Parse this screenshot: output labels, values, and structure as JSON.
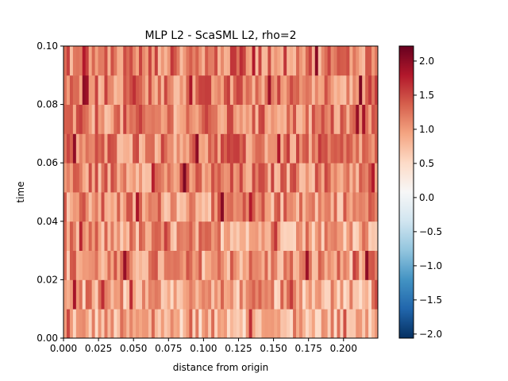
{
  "chart_data": {
    "type": "heatmap",
    "title": "MLP L2 - ScaSML L2, rho=2",
    "xlabel": "distance from origin",
    "ylabel": "time",
    "xlim": [
      0,
      0.2245
    ],
    "ylim": [
      0,
      0.1
    ],
    "x_ticks": [
      "0.000",
      "0.025",
      "0.050",
      "0.075",
      "0.100",
      "0.125",
      "0.150",
      "0.175",
      "0.200"
    ],
    "y_ticks": [
      "0.00",
      "0.02",
      "0.04",
      "0.06",
      "0.08",
      "0.10"
    ],
    "n_time_bins": 10,
    "n_distance_bins": 100,
    "time_bin_width": 0.01,
    "row_levels": [
      0.85,
      0.92,
      1.02,
      0.98,
      1.05,
      1.12,
      1.15,
      1.12,
      1.15,
      1.18
    ],
    "colorbar": {
      "colormap": "RdBu_r",
      "vmin": -2.06,
      "vmax": 2.22,
      "ticks": [
        "2.0",
        "1.5",
        "1.0",
        "0.5",
        "0.0",
        "−0.5",
        "−1.0",
        "−1.5",
        "−2.0"
      ],
      "tick_values": [
        2.0,
        1.5,
        1.0,
        0.5,
        0.0,
        -0.5,
        -1.0,
        -1.5,
        -2.0
      ]
    },
    "grid": false,
    "legend": "none"
  }
}
